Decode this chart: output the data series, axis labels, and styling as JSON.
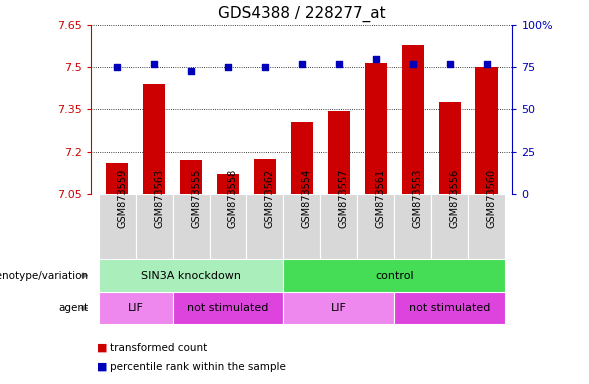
{
  "title": "GDS4388 / 228277_at",
  "samples": [
    "GSM873559",
    "GSM873563",
    "GSM873555",
    "GSM873558",
    "GSM873562",
    "GSM873554",
    "GSM873557",
    "GSM873561",
    "GSM873553",
    "GSM873556",
    "GSM873560"
  ],
  "bar_values": [
    7.16,
    7.44,
    7.17,
    7.12,
    7.175,
    7.305,
    7.345,
    7.515,
    7.58,
    7.375,
    7.5
  ],
  "dot_values": [
    75,
    77,
    73,
    75,
    75,
    77,
    77,
    80,
    77,
    77,
    77
  ],
  "ylim_left": [
    7.05,
    7.65
  ],
  "ylim_right": [
    0,
    100
  ],
  "yticks_left": [
    7.05,
    7.2,
    7.35,
    7.5,
    7.65
  ],
  "yticks_right": [
    0,
    25,
    50,
    75,
    100
  ],
  "ytick_labels_left": [
    "7.05",
    "7.2",
    "7.35",
    "7.5",
    "7.65"
  ],
  "ytick_labels_right": [
    "0",
    "25",
    "50",
    "75",
    "100%"
  ],
  "bar_color": "#cc0000",
  "dot_color": "#0000bb",
  "bar_width": 0.6,
  "groups": [
    {
      "label": "SIN3A knockdown",
      "start": 0,
      "end": 5,
      "color": "#aaeebb"
    },
    {
      "label": "control",
      "start": 5,
      "end": 11,
      "color": "#44dd55"
    }
  ],
  "agents": [
    {
      "label": "LIF",
      "start": 0,
      "end": 2,
      "color": "#ee88ee"
    },
    {
      "label": "not stimulated",
      "start": 2,
      "end": 5,
      "color": "#dd44dd"
    },
    {
      "label": "LIF",
      "start": 5,
      "end": 8,
      "color": "#ee88ee"
    },
    {
      "label": "not stimulated",
      "start": 8,
      "end": 11,
      "color": "#dd44dd"
    }
  ],
  "row_labels": [
    "genotype/variation",
    "agent"
  ],
  "legend_items": [
    {
      "label": "transformed count",
      "color": "#cc0000"
    },
    {
      "label": "percentile rank within the sample",
      "color": "#0000bb"
    }
  ],
  "title_fontsize": 11,
  "tick_fontsize": 8,
  "sample_label_fontsize": 7,
  "annot_fontsize": 8
}
